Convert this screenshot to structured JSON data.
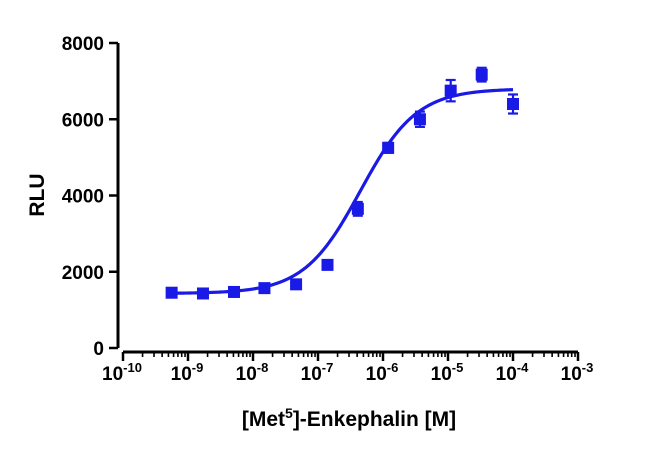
{
  "colors": {
    "series": "#1a1ae6",
    "axis": "#000000"
  },
  "chart_data": {
    "type": "scatter",
    "xscale": "log",
    "xlabel_parts": {
      "before": "[Met",
      "sup": "5",
      "after": "]-Enkephalin [M]"
    },
    "ylabel": "RLU",
    "xlim": [
      1e-10,
      0.001
    ],
    "ylim": [
      0,
      8000
    ],
    "x_ticks": [
      {
        "base": "10",
        "exp": "-10"
      },
      {
        "base": "10",
        "exp": "-9"
      },
      {
        "base": "10",
        "exp": "-8"
      },
      {
        "base": "10",
        "exp": "-7"
      },
      {
        "base": "10",
        "exp": "-6"
      },
      {
        "base": "10",
        "exp": "-5"
      },
      {
        "base": "10",
        "exp": "-4"
      },
      {
        "base": "10",
        "exp": "-3"
      }
    ],
    "y_ticks": [
      "0",
      "2000",
      "4000",
      "6000",
      "8000"
    ],
    "series": [
      {
        "marker": "square",
        "points": [
          {
            "x": 5.6e-10,
            "y": 1450,
            "err": 60
          },
          {
            "x": 1.7e-09,
            "y": 1430,
            "err": 50
          },
          {
            "x": 5.1e-09,
            "y": 1470,
            "err": 50
          },
          {
            "x": 1.5e-08,
            "y": 1570,
            "err": 60
          },
          {
            "x": 4.6e-08,
            "y": 1670,
            "err": 70
          },
          {
            "x": 1.4e-07,
            "y": 2180,
            "err": 90
          },
          {
            "x": 4.1e-07,
            "y": 3650,
            "err": 180
          },
          {
            "x": 1.2e-06,
            "y": 5250,
            "err": 130
          },
          {
            "x": 3.7e-06,
            "y": 6000,
            "err": 200
          },
          {
            "x": 1.1e-05,
            "y": 6750,
            "err": 280
          },
          {
            "x": 3.3e-05,
            "y": 7170,
            "err": 180
          },
          {
            "x": 0.0001,
            "y": 6400,
            "err": 250
          }
        ],
        "fit": {
          "model": "four-parameter logistic",
          "bottom": 1430,
          "top": 6800,
          "logEC50": -6.35,
          "hill": 1.0
        }
      }
    ]
  }
}
